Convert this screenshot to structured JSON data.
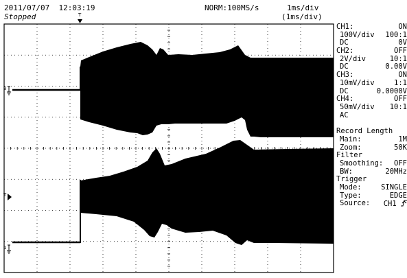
{
  "header": {
    "datetime": "2011/07/07  12:03:19",
    "status": "Stopped",
    "trigger_mark": "T",
    "acq": "NORM:100MS/s",
    "timebase": "1ms/div",
    "timebase_sub": "(1ms/div)"
  },
  "markers": {
    "ch3": "3",
    "ch1": "1",
    "trig": "T"
  },
  "panel": {
    "ch1_label": "CH1:",
    "ch1_state": "ON",
    "ch1_vdiv": "100V/div",
    "ch1_probe": "100:1",
    "ch1_coupling": "DC",
    "ch1_offset": "0V",
    "ch2_label": "CH2:",
    "ch2_state": "OFF",
    "ch2_vdiv": "2V/div",
    "ch2_probe": "10:1",
    "ch2_coupling": "DC",
    "ch2_offset": "0.00V",
    "ch3_label": "CH3:",
    "ch3_state": "ON",
    "ch3_vdiv": "10mV/div",
    "ch3_probe": "1:1",
    "ch3_coupling": "DC",
    "ch3_offset": "0.0000V",
    "ch4_label": "CH4:",
    "ch4_state": "OFF",
    "ch4_vdiv": "50mV/div",
    "ch4_probe": "10:1",
    "ch4_coupling": "AC",
    "rec_title": "Record Length",
    "main_label": "Main:",
    "main_value": "1M",
    "zoom_label": "Zoom:",
    "zoom_value": "50K",
    "filter_title": "Filter",
    "smooth_label": "Smoothing:",
    "smooth_value": "OFF",
    "bw_label": "BW:",
    "bw_value": "20MHz",
    "trig_title": "Trigger",
    "mode_label": "Mode:",
    "mode_value": "SINGLE",
    "type_label": "Type:",
    "type_value": "EDGE",
    "source_label": "Source:",
    "source_value": "CH1"
  }
}
